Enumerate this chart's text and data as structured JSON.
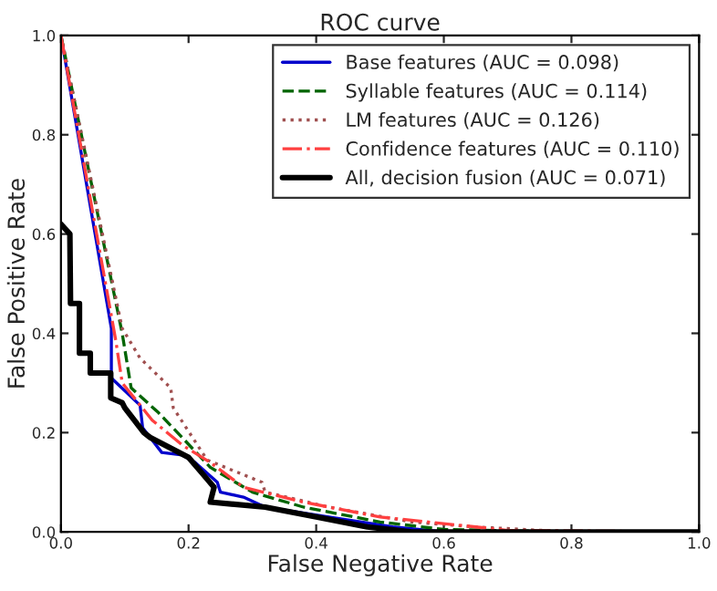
{
  "chart_data": {
    "type": "line",
    "title": "ROC curve",
    "xlabel": "False Negative Rate",
    "ylabel": "False Positive Rate",
    "xlim": [
      0,
      1
    ],
    "ylim": [
      0,
      1
    ],
    "xticks": [
      {
        "value": 0,
        "label": "0.0"
      },
      0.2,
      0.4,
      0.6,
      0.8,
      {
        "value": 1,
        "label": "1.0"
      }
    ],
    "yticks": [
      {
        "value": 0,
        "label": "0.0"
      },
      0.2,
      0.4,
      0.6,
      0.8,
      {
        "value": 1,
        "label": "1.0"
      }
    ],
    "grid": false,
    "legend": "top right",
    "marker": "none",
    "series": [
      {
        "name": "Base features (AUC = 0.098)",
        "color": "#0000cc",
        "line_style": "solid",
        "x": [
          0,
          0.079,
          0.079,
          0.124,
          0.128,
          0.158,
          0.19,
          0.21,
          0.245,
          0.25,
          0.286,
          0.32,
          0.42,
          0.52,
          0.6,
          1.0
        ],
        "values": [
          1.0,
          0.41,
          0.31,
          0.255,
          0.21,
          0.16,
          0.155,
          0.14,
          0.1,
          0.08,
          0.07,
          0.05,
          0.03,
          0.01,
          0,
          0
        ]
      },
      {
        "name": "Syllable features (AUC = 0.114)",
        "color": "#006400",
        "line_style": "dashed",
        "x": [
          0,
          0.096,
          0.11,
          0.153,
          0.19,
          0.234,
          0.3,
          0.38,
          0.5,
          0.6,
          0.8,
          1.0
        ],
        "values": [
          1.0,
          0.4,
          0.29,
          0.24,
          0.19,
          0.13,
          0.08,
          0.05,
          0.02,
          0.005,
          0,
          0
        ]
      },
      {
        "name": "LM features (AUC = 0.126)",
        "color": "#a05050",
        "line_style": "dotted",
        "x": [
          0,
          0.096,
          0.124,
          0.172,
          0.176,
          0.229,
          0.315,
          0.32,
          0.42,
          0.55,
          0.65,
          0.8,
          1.0
        ],
        "values": [
          1.0,
          0.41,
          0.35,
          0.29,
          0.25,
          0.145,
          0.1,
          0.08,
          0.05,
          0.02,
          0.01,
          0,
          0
        ]
      },
      {
        "name": "Confidence features (AUC = 0.110)",
        "color": "#ff4040",
        "line_style": "dashdot",
        "x": [
          0,
          0.086,
          0.096,
          0.143,
          0.19,
          0.234,
          0.286,
          0.38,
          0.5,
          0.65,
          0.7,
          1.0
        ],
        "values": [
          1.0,
          0.385,
          0.3,
          0.225,
          0.175,
          0.14,
          0.09,
          0.06,
          0.03,
          0.01,
          0.003,
          0
        ]
      },
      {
        "name": "All, decision fusion (AUC = 0.071)",
        "color": "#000000",
        "line_style": "solid",
        "x": [
          0,
          0.014,
          0.015,
          0.029,
          0.029,
          0.046,
          0.046,
          0.078,
          0.078,
          0.096,
          0.1,
          0.13,
          0.14,
          0.2,
          0.22,
          0.24,
          0.234,
          0.32,
          0.4,
          0.48,
          0.55,
          1.0
        ],
        "values": [
          0.62,
          0.6,
          0.46,
          0.46,
          0.36,
          0.36,
          0.32,
          0.32,
          0.27,
          0.26,
          0.25,
          0.2,
          0.19,
          0.15,
          0.12,
          0.09,
          0.06,
          0.05,
          0.03,
          0.01,
          0,
          0
        ]
      }
    ]
  }
}
